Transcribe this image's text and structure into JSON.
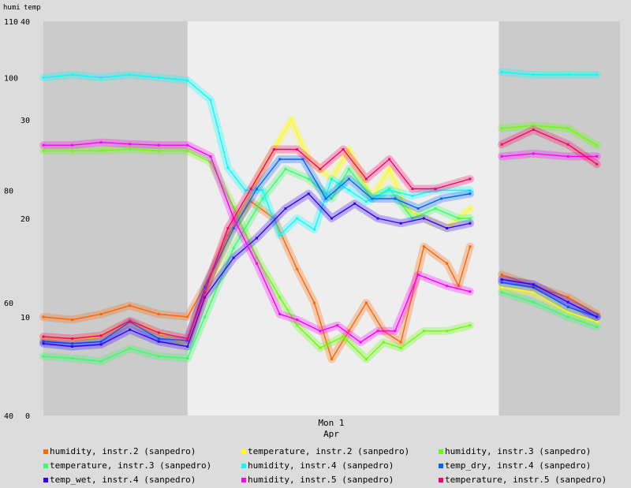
{
  "chart_data": {
    "type": "line",
    "left_axis_title": "humi",
    "right_axis_title": "temp",
    "humi_axis": {
      "ticks": [
        110,
        100,
        80,
        60,
        40
      ],
      "range": [
        40,
        110
      ]
    },
    "temp_axis": {
      "ticks": [
        40,
        30,
        20,
        10,
        0
      ],
      "range": [
        0,
        40
      ]
    },
    "x_label_primary": "Mon 1",
    "x_label_secondary": "Apr",
    "x_range": [
      0,
      100
    ],
    "shaded_spans": [
      [
        0,
        25
      ],
      [
        79,
        100
      ]
    ],
    "colors": {
      "background": "#dcdcdc",
      "plot_light": "#eeeeee",
      "plot_shade": "#cbcbcb"
    },
    "legend": [
      {
        "label": "humidity, instr.2 (sanpedro)",
        "color": "#ff6600"
      },
      {
        "label": "temperature, instr.2 (sanpedro)",
        "color": "#ffff00"
      },
      {
        "label": "humidity, instr.3 (sanpedro)",
        "color": "#66ff00"
      },
      {
        "label": "temperature, instr.3 (sanpedro)",
        "color": "#33ff66"
      },
      {
        "label": "humidity, instr.4 (sanpedro)",
        "color": "#00ffff"
      },
      {
        "label": "temp_dry, instr.4 (sanpedro)",
        "color": "#0066ff"
      },
      {
        "label": "temp_wet, instr.4 (sanpedro)",
        "color": "#3300ff"
      },
      {
        "label": "humidity, instr.5 (sanpedro)",
        "color": "#ff00ff"
      },
      {
        "label": "temperature, instr.5 (sanpedro)",
        "color": "#ff0066"
      }
    ],
    "series": [
      {
        "name": "humidity, instr.2 (sanpedro)",
        "axis": "humi",
        "color": "#ff6600",
        "points": [
          [
            0,
            57.5
          ],
          [
            5,
            57
          ],
          [
            10,
            58
          ],
          [
            15,
            59.5
          ],
          [
            20,
            58
          ],
          [
            25,
            57.5
          ],
          [
            28,
            63
          ],
          [
            32,
            72
          ],
          [
            36,
            78
          ],
          [
            40,
            75
          ],
          [
            44,
            66
          ],
          [
            47,
            60
          ],
          [
            50,
            50
          ],
          [
            53,
            55
          ],
          [
            56,
            60
          ],
          [
            59,
            55
          ],
          [
            62,
            53
          ],
          [
            66,
            70
          ],
          [
            70,
            67
          ],
          [
            72,
            63
          ],
          [
            74,
            70
          ]
        ],
        "points2": [
          [
            79.5,
            65
          ],
          [
            85,
            63
          ],
          [
            91,
            61
          ],
          [
            96,
            58
          ]
        ]
      },
      {
        "name": "temperature, instr.2 (sanpedro)",
        "axis": "temp",
        "color": "#ffff00",
        "points": [
          [
            0,
            7.8
          ],
          [
            5,
            7.6
          ],
          [
            10,
            8
          ],
          [
            15,
            9.5
          ],
          [
            20,
            8.3
          ],
          [
            25,
            7.2
          ],
          [
            28,
            12
          ],
          [
            33,
            19
          ],
          [
            38,
            25
          ],
          [
            41,
            28
          ],
          [
            43,
            30
          ],
          [
            46,
            26
          ],
          [
            50,
            24
          ],
          [
            53,
            27
          ],
          [
            57,
            22
          ],
          [
            60,
            25
          ],
          [
            63,
            21
          ],
          [
            66,
            20
          ],
          [
            70,
            19
          ],
          [
            74,
            21
          ]
        ],
        "points2": [
          [
            79.5,
            13
          ],
          [
            85,
            12.5
          ],
          [
            91,
            10.5
          ],
          [
            96,
            9.5
          ]
        ]
      },
      {
        "name": "humidity, instr.3 (sanpedro)",
        "axis": "humi",
        "color": "#66ff00",
        "points": [
          [
            0,
            87
          ],
          [
            5,
            87
          ],
          [
            10,
            87
          ],
          [
            15,
            87.3
          ],
          [
            20,
            87
          ],
          [
            25,
            87
          ],
          [
            29,
            85
          ],
          [
            33,
            77
          ],
          [
            37,
            68
          ],
          [
            41,
            61
          ],
          [
            44,
            56
          ],
          [
            48,
            52
          ],
          [
            52,
            54
          ],
          [
            56,
            50
          ],
          [
            59,
            53
          ],
          [
            62,
            52
          ],
          [
            66,
            55
          ],
          [
            70,
            55
          ],
          [
            74,
            56
          ]
        ],
        "points2": [
          [
            79.5,
            91
          ],
          [
            85,
            91.5
          ],
          [
            91,
            91
          ],
          [
            96,
            88
          ]
        ]
      },
      {
        "name": "temperature, instr.3 (sanpedro)",
        "axis": "temp",
        "color": "#33ff66",
        "points": [
          [
            0,
            6
          ],
          [
            5,
            5.8
          ],
          [
            10,
            5.5
          ],
          [
            15,
            6.8
          ],
          [
            20,
            6
          ],
          [
            25,
            5.8
          ],
          [
            28,
            10
          ],
          [
            33,
            17
          ],
          [
            38,
            22
          ],
          [
            42,
            25
          ],
          [
            46,
            24
          ],
          [
            50,
            22
          ],
          [
            53,
            25
          ],
          [
            57,
            22
          ],
          [
            60,
            23
          ],
          [
            64,
            20
          ],
          [
            68,
            21
          ],
          [
            72,
            20
          ],
          [
            74,
            20
          ]
        ],
        "points2": [
          [
            79.5,
            12.5
          ],
          [
            85,
            11.5
          ],
          [
            91,
            10
          ],
          [
            96,
            9
          ]
        ]
      },
      {
        "name": "humidity, instr.4 (sanpedro)",
        "axis": "humi",
        "color": "#00ffff",
        "points": [
          [
            0,
            100
          ],
          [
            5,
            100.5
          ],
          [
            10,
            100
          ],
          [
            15,
            100.5
          ],
          [
            20,
            100
          ],
          [
            25,
            99.5
          ],
          [
            29,
            96
          ],
          [
            32,
            84
          ],
          [
            35,
            80
          ],
          [
            38,
            80
          ],
          [
            41,
            72
          ],
          [
            44,
            75
          ],
          [
            47,
            73
          ],
          [
            50,
            82
          ],
          [
            53,
            80
          ],
          [
            56,
            78
          ],
          [
            60,
            80
          ],
          [
            64,
            79
          ],
          [
            68,
            80
          ],
          [
            74,
            80
          ]
        ],
        "points2": [
          [
            79.5,
            101
          ],
          [
            85,
            100.5
          ],
          [
            91,
            100.5
          ],
          [
            96,
            100.5
          ]
        ]
      },
      {
        "name": "temp_dry, instr.4 (sanpedro)",
        "axis": "temp",
        "color": "#0066ff",
        "points": [
          [
            0,
            7.5
          ],
          [
            5,
            7.3
          ],
          [
            10,
            7.5
          ],
          [
            15,
            9.5
          ],
          [
            20,
            7.8
          ],
          [
            25,
            7.6
          ],
          [
            28,
            13
          ],
          [
            33,
            19
          ],
          [
            37,
            23
          ],
          [
            41,
            26
          ],
          [
            45,
            26
          ],
          [
            49,
            22
          ],
          [
            53,
            24
          ],
          [
            57,
            22
          ],
          [
            61,
            22
          ],
          [
            65,
            21
          ],
          [
            69,
            22
          ],
          [
            74,
            22.5
          ]
        ],
        "points2": [
          [
            79.5,
            13.5
          ],
          [
            85,
            13
          ],
          [
            91,
            11
          ],
          [
            96,
            10
          ]
        ]
      },
      {
        "name": "temp_wet, instr.4 (sanpedro)",
        "axis": "temp",
        "color": "#3300ff",
        "points": [
          [
            0,
            7.3
          ],
          [
            5,
            7
          ],
          [
            10,
            7.2
          ],
          [
            15,
            8.7
          ],
          [
            20,
            7.5
          ],
          [
            25,
            7
          ],
          [
            28,
            12
          ],
          [
            33,
            16
          ],
          [
            37,
            18
          ],
          [
            42,
            21
          ],
          [
            46,
            22.5
          ],
          [
            50,
            20
          ],
          [
            54,
            21.5
          ],
          [
            58,
            20
          ],
          [
            62,
            19.5
          ],
          [
            66,
            20
          ],
          [
            70,
            19
          ],
          [
            74,
            19.5
          ]
        ],
        "points2": [
          [
            79.5,
            13.8
          ],
          [
            85,
            13.3
          ],
          [
            91,
            11.5
          ],
          [
            96,
            10
          ]
        ]
      },
      {
        "name": "humidity, instr.5 (sanpedro)",
        "axis": "humi",
        "color": "#ff00ff",
        "points": [
          [
            0,
            88
          ],
          [
            5,
            88
          ],
          [
            10,
            88.5
          ],
          [
            15,
            88.2
          ],
          [
            20,
            88
          ],
          [
            25,
            88
          ],
          [
            29,
            86
          ],
          [
            33,
            75
          ],
          [
            37,
            67
          ],
          [
            41,
            58
          ],
          [
            44,
            57
          ],
          [
            48,
            55
          ],
          [
            51,
            56
          ],
          [
            55,
            53
          ],
          [
            58,
            55
          ],
          [
            61,
            55
          ],
          [
            65,
            65
          ],
          [
            70,
            63
          ],
          [
            74,
            62
          ]
        ],
        "points2": [
          [
            79.5,
            86
          ],
          [
            85,
            86.5
          ],
          [
            91,
            86
          ],
          [
            96,
            86
          ]
        ]
      },
      {
        "name": "temperature, instr.5 (sanpedro)",
        "axis": "temp",
        "color": "#ff0066",
        "points": [
          [
            0,
            8
          ],
          [
            5,
            7.8
          ],
          [
            10,
            8.1
          ],
          [
            15,
            9.6
          ],
          [
            20,
            8.4
          ],
          [
            25,
            7.8
          ],
          [
            28,
            12.5
          ],
          [
            32,
            19
          ],
          [
            36,
            23
          ],
          [
            40,
            27
          ],
          [
            44,
            27
          ],
          [
            48,
            25
          ],
          [
            52,
            27
          ],
          [
            56,
            24
          ],
          [
            60,
            26
          ],
          [
            64,
            23
          ],
          [
            68,
            23
          ],
          [
            74,
            24
          ]
        ],
        "points2": [
          [
            79.5,
            27.5
          ],
          [
            85,
            29
          ],
          [
            91,
            27.5
          ],
          [
            96,
            25.5
          ]
        ]
      }
    ]
  }
}
